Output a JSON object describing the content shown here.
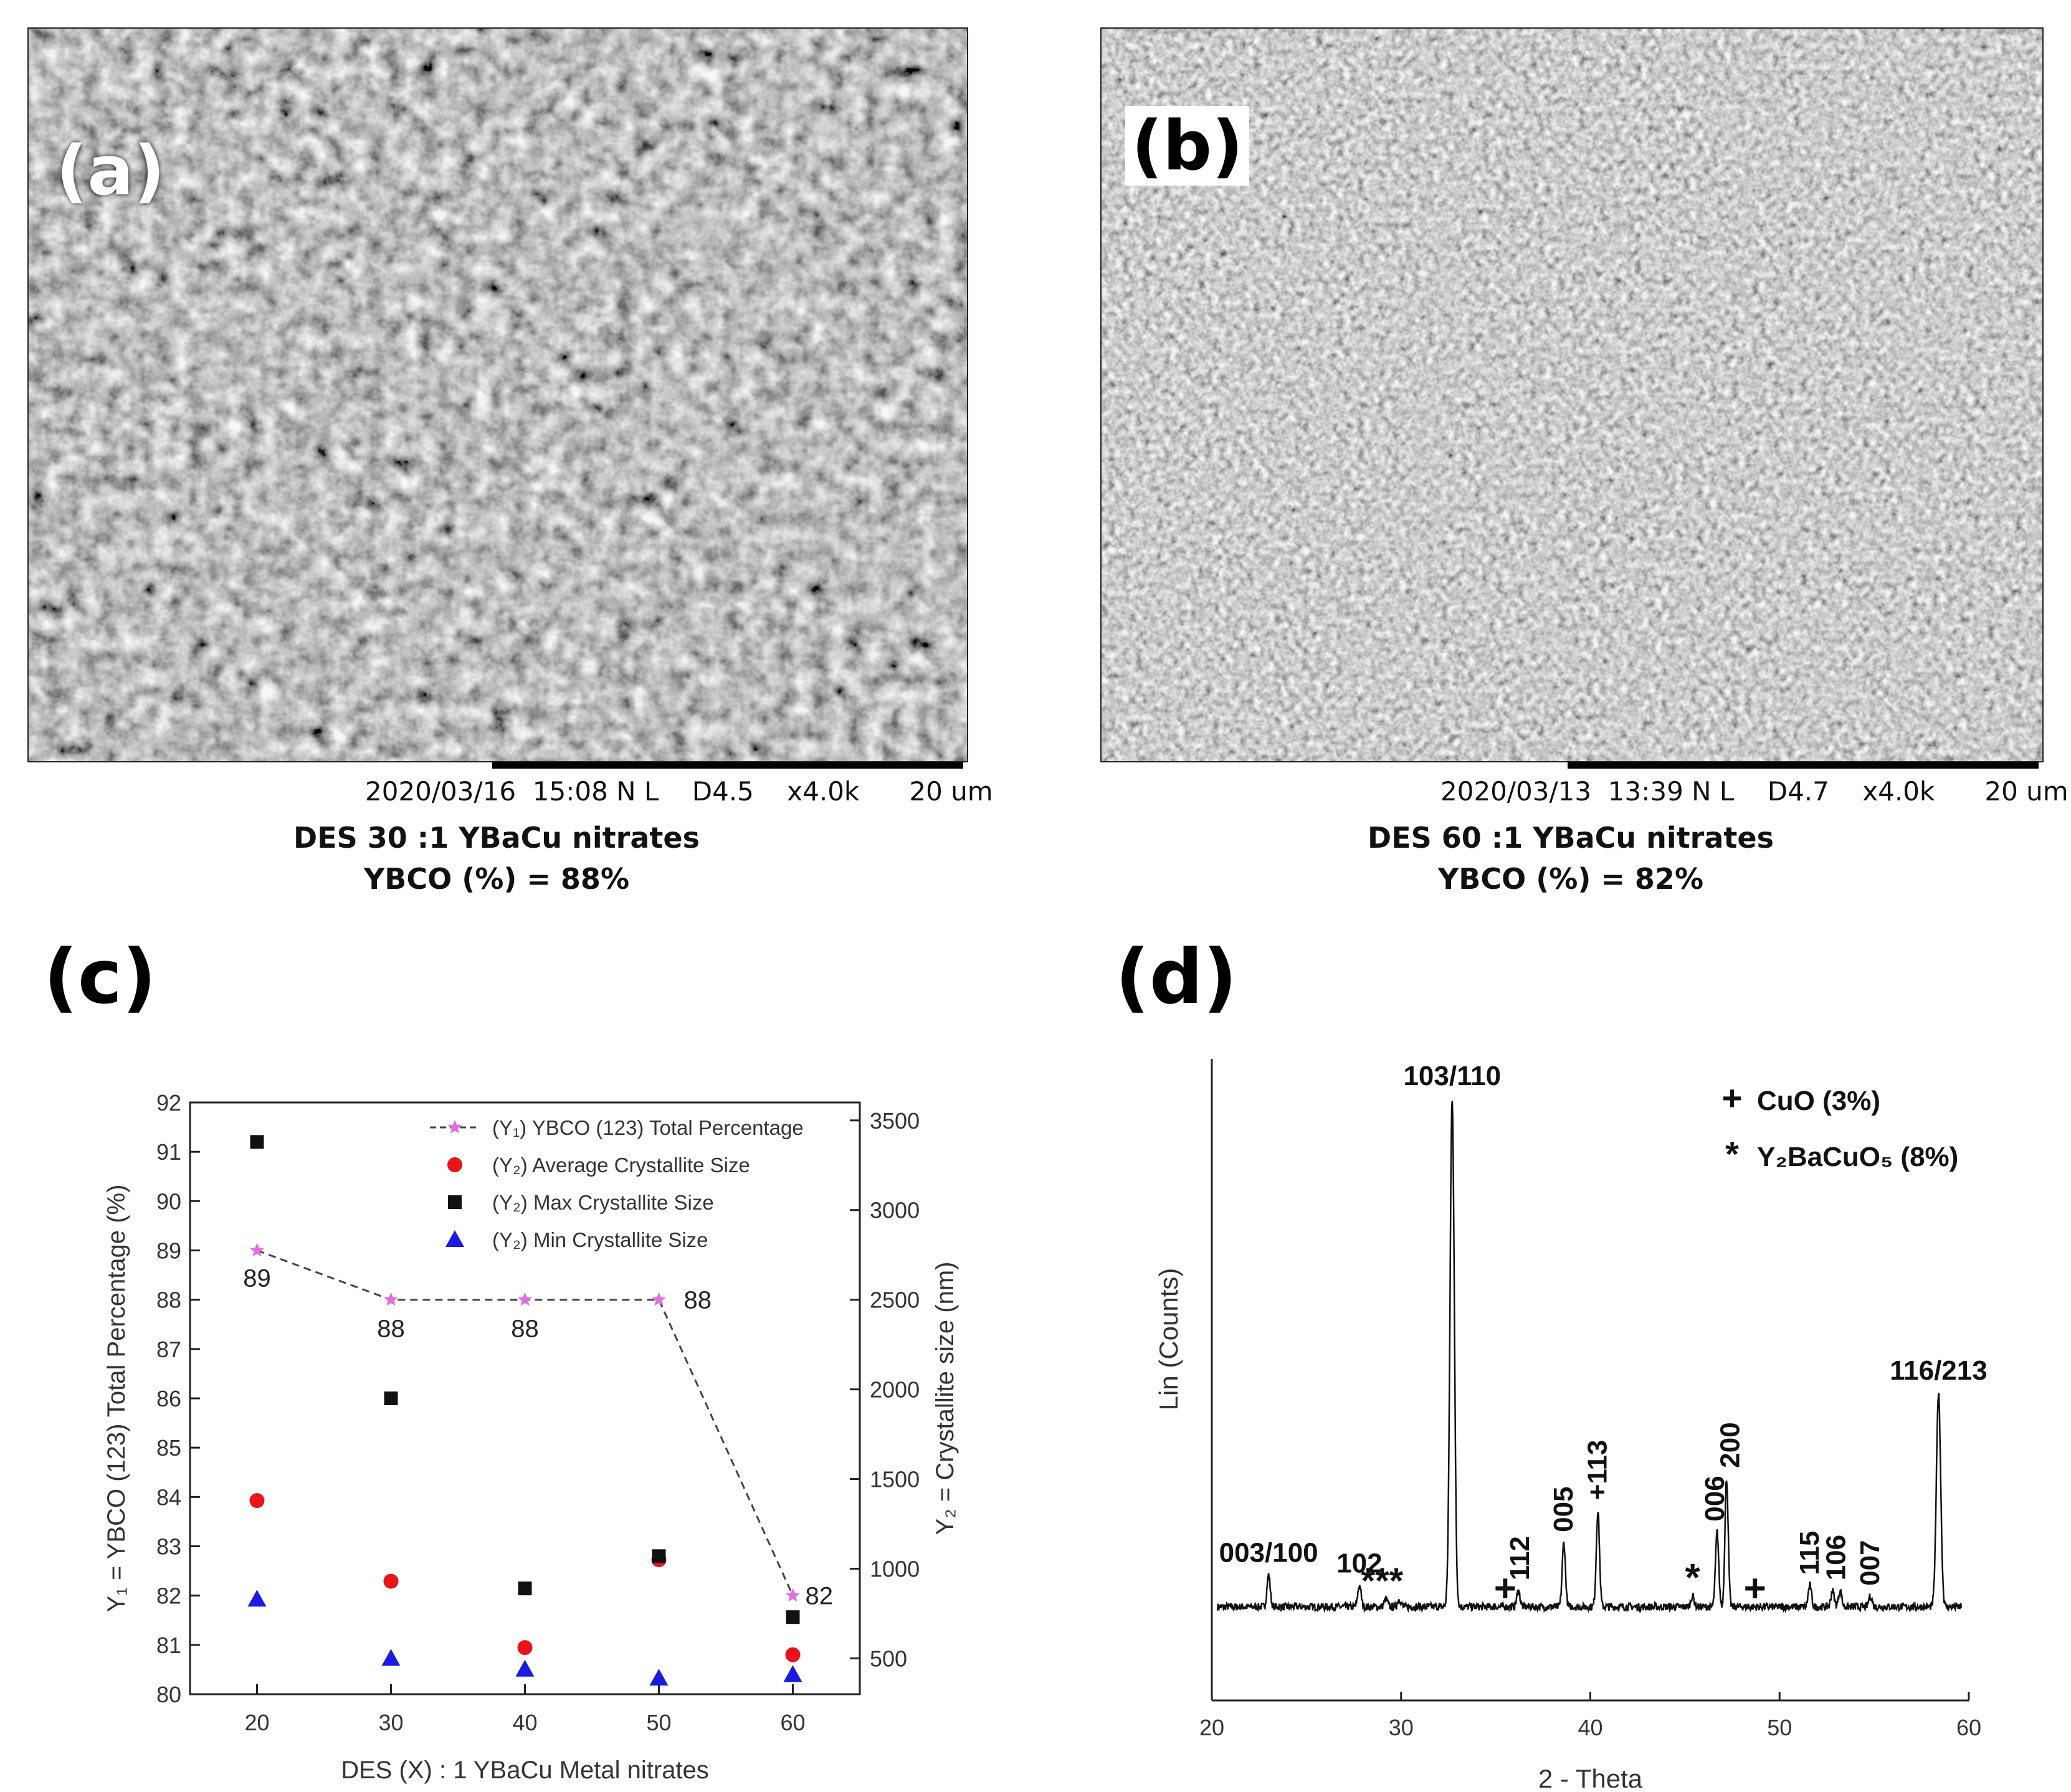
{
  "panel_a": {
    "letter": "(a)",
    "sem_info": "2020/03/16  15:08 N L    D4.5    x4.0k      20 um",
    "caption_line1": "DES 30 :1 YBaCu nitrates",
    "caption_line2": "YBCO (%) = 88%"
  },
  "panel_b": {
    "letter": "(b)",
    "sem_info": "2020/03/13  13:39 N L    D4.7    x4.0k      20 um",
    "caption_line1": "DES 60 :1 YBaCu nitrates",
    "caption_line2": "YBCO (%) = 82%"
  },
  "panel_c": {
    "letter": "(c)"
  },
  "panel_d": {
    "letter": "(d)"
  },
  "chart_data": [
    {
      "type": "scatter",
      "xlabel": "DES (X) : 1 YBaCu Metal nitrates",
      "ylabel": "Y₁ = YBCO (123) Total Percentage (%)",
      "y2label": "Y₂ = Crystallite size (nm)",
      "x_ticks": [
        20,
        30,
        40,
        50,
        60
      ],
      "xlim": [
        15,
        65
      ],
      "ylim": [
        80,
        92
      ],
      "y_ticks": [
        80,
        81,
        82,
        83,
        84,
        85,
        86,
        87,
        88,
        89,
        90,
        91,
        92
      ],
      "y2lim": [
        300,
        3600
      ],
      "y2_ticks": [
        500,
        1000,
        1500,
        2000,
        2500,
        3000,
        3500
      ],
      "grid": false,
      "legend_position": "top-right",
      "x": [
        20,
        30,
        40,
        50,
        60
      ],
      "series": [
        {
          "name": "(Y₁) YBCO (123) Total Percentage",
          "axis": "y1",
          "marker": "star",
          "line": "dashed",
          "color": "#e070e0",
          "values": [
            89,
            88,
            88,
            88,
            82
          ],
          "labels": [
            "89",
            "88",
            "88",
            "88",
            "82"
          ]
        },
        {
          "name": "(Y₂) Average Crystallite Size",
          "axis": "y2",
          "marker": "circle",
          "color": "#e8141a",
          "values": [
            1380,
            930,
            560,
            1050,
            520
          ]
        },
        {
          "name": "(Y₂) Max Crystallite Size",
          "axis": "y2",
          "marker": "square",
          "color": "#111111",
          "values": [
            3380,
            1950,
            890,
            1070,
            730
          ]
        },
        {
          "name": "(Y₂) Min Crystallite Size",
          "axis": "y2",
          "marker": "triangle",
          "color": "#1a1ae0",
          "values": [
            830,
            500,
            440,
            390,
            410
          ]
        }
      ]
    },
    {
      "type": "line",
      "xlabel": "2 - Theta",
      "ylabel": "Lin (Counts)",
      "xlim": [
        20,
        60
      ],
      "x_ticks": [
        20,
        30,
        40,
        50,
        60
      ],
      "ylim": [
        0,
        110
      ],
      "peaks": [
        {
          "x": 23.0,
          "h": 6
        },
        {
          "x": 27.8,
          "h": 4
        },
        {
          "x": 29.2,
          "h": 1.5
        },
        {
          "x": 29.9,
          "h": 1.5
        },
        {
          "x": 32.7,
          "h": 95
        },
        {
          "x": 36.2,
          "h": 3
        },
        {
          "x": 38.6,
          "h": 12
        },
        {
          "x": 40.4,
          "h": 18
        },
        {
          "x": 45.4,
          "h": 2
        },
        {
          "x": 46.7,
          "h": 14
        },
        {
          "x": 47.2,
          "h": 24
        },
        {
          "x": 51.6,
          "h": 4
        },
        {
          "x": 52.8,
          "h": 3
        },
        {
          "x": 53.2,
          "h": 3
        },
        {
          "x": 54.8,
          "h": 2
        },
        {
          "x": 58.4,
          "h": 40
        }
      ],
      "annotations": [
        {
          "text": "003/100",
          "x": 23.0,
          "rotate": false
        },
        {
          "text": "102",
          "x": 27.8,
          "rotate": false
        },
        {
          "text": "***",
          "x": 29.0,
          "rotate": false
        },
        {
          "text": "103/110",
          "x": 32.7,
          "rotate": false
        },
        {
          "text": "+",
          "x": 35.5,
          "rotate": false
        },
        {
          "text": "112",
          "x": 36.3,
          "rotate": true
        },
        {
          "text": "005",
          "x": 38.6,
          "rotate": true
        },
        {
          "text": "+113",
          "x": 40.4,
          "rotate": true
        },
        {
          "text": "*",
          "x": 45.4,
          "rotate": false
        },
        {
          "text": "006",
          "x": 46.6,
          "rotate": true
        },
        {
          "text": "200",
          "x": 47.4,
          "rotate": true
        },
        {
          "text": "+",
          "x": 48.7,
          "rotate": false
        },
        {
          "text": "115",
          "x": 51.6,
          "rotate": true
        },
        {
          "text": "106",
          "x": 53.0,
          "rotate": true
        },
        {
          "text": "007",
          "x": 54.8,
          "rotate": true
        },
        {
          "text": "116/213",
          "x": 58.4,
          "rotate": false
        }
      ],
      "legend": [
        {
          "symbol": "+",
          "text": "CuO (3%)"
        },
        {
          "symbol": "*",
          "text": "Y₂BaCuO₅ (8%)"
        }
      ]
    }
  ]
}
